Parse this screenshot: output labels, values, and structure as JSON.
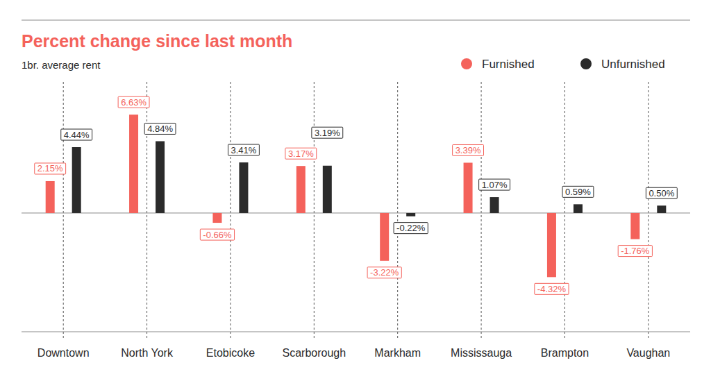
{
  "chart_data": {
    "type": "bar",
    "title": "Percent change since last month",
    "subtitle": "1br. average rent",
    "categories": [
      "Downtown",
      "North York",
      "Etobicoke",
      "Scarborough",
      "Markham",
      "Mississauga",
      "Brampton",
      "Vaughan"
    ],
    "series": [
      {
        "name": "Furnished",
        "color": "#f4625b",
        "values": [
          2.15,
          6.63,
          -0.66,
          3.17,
          -3.22,
          3.39,
          -4.32,
          -1.76
        ],
        "value_labels": [
          "2.15%",
          "6.63%",
          "-0.66%",
          "3.17%",
          "-3.22%",
          "3.39%",
          "-4.32%",
          "-1.76%"
        ]
      },
      {
        "name": "Unfurnished",
        "color": "#2b2b2b",
        "values": [
          4.44,
          4.84,
          3.41,
          3.19,
          -0.22,
          1.07,
          0.59,
          0.5
        ],
        "value_labels": [
          "4.44%",
          "4.84%",
          "3.41%",
          "3.19%",
          "-0.22%",
          "1.07%",
          "0.59%",
          "0.50%"
        ]
      }
    ],
    "ylim": [
      -8,
      13
    ],
    "yticks": [
      0
    ],
    "grid": true,
    "legend": "top-right",
    "data_labels": true,
    "tick_labels": "x"
  }
}
